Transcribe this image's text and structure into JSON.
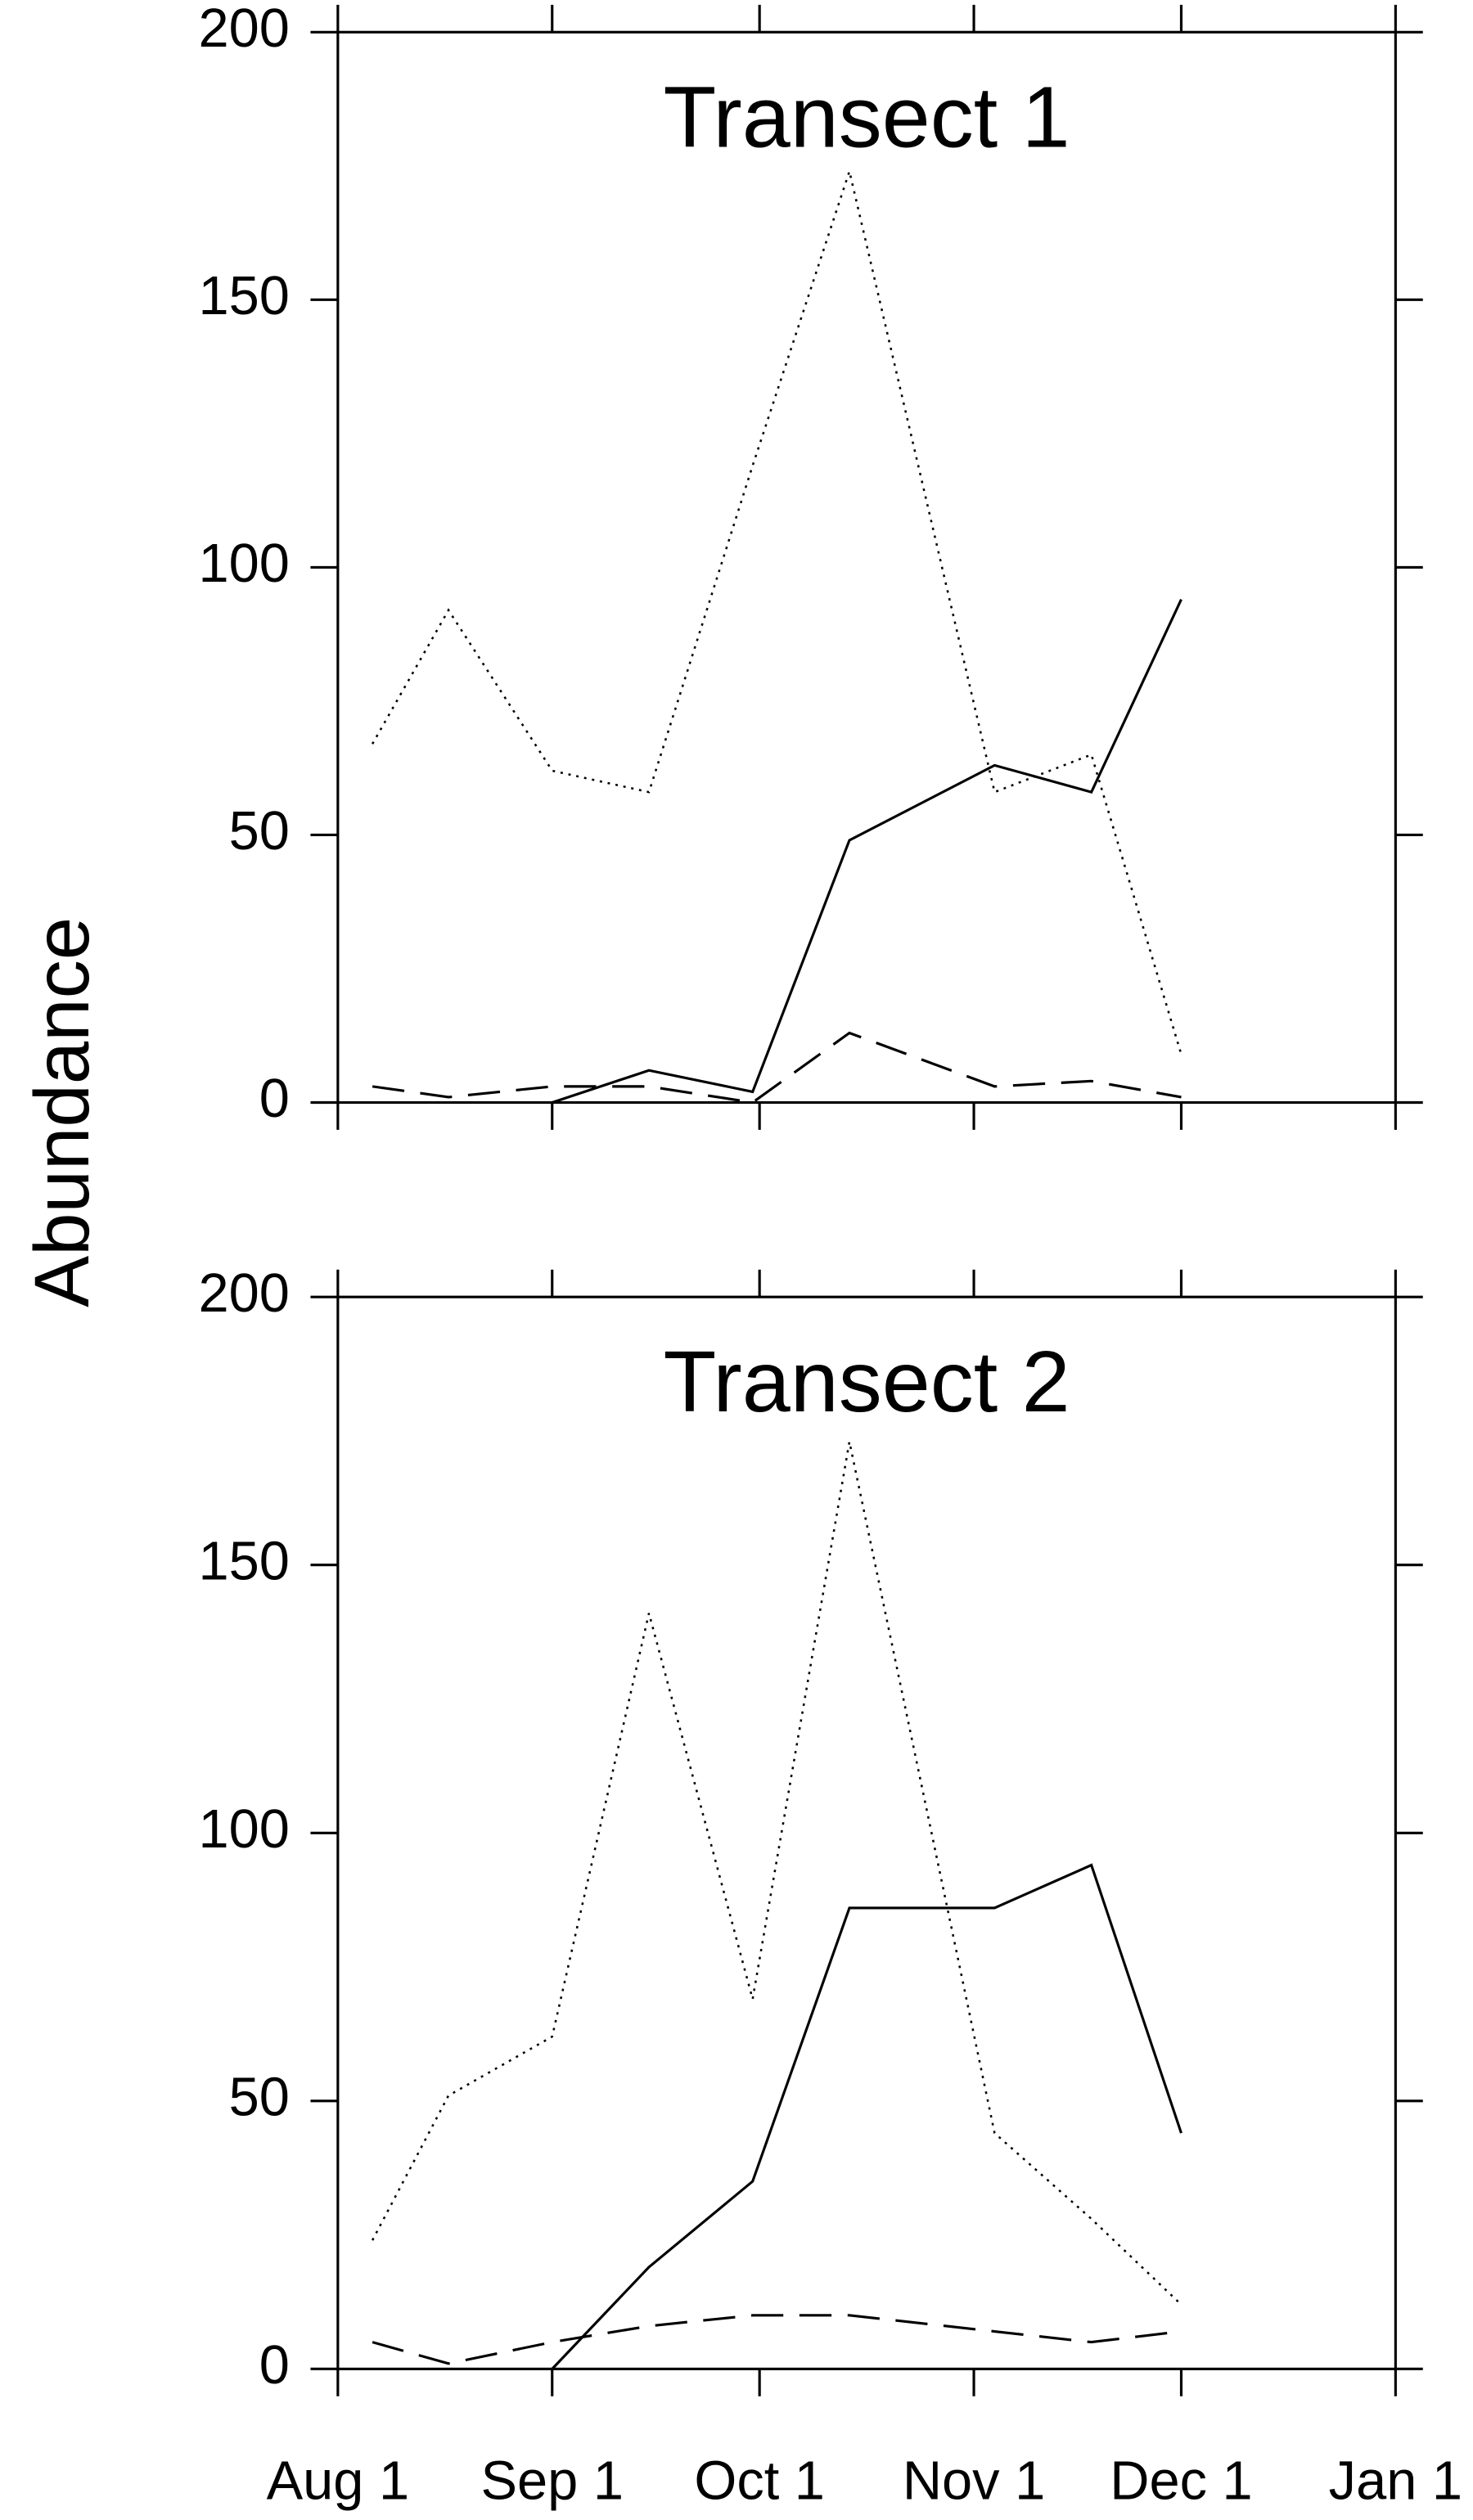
{
  "chart_data": [
    {
      "type": "line",
      "title": "Transect 1",
      "ylabel": "Abundance",
      "x": [
        "Aug 6",
        "Aug 17",
        "Sep 1",
        "Sep 15",
        "Sep 30",
        "Oct 14",
        "Nov 4",
        "Nov 18",
        "Dec 1"
      ],
      "xlim": [
        "Aug 1",
        "Jan 1"
      ],
      "ylim": [
        0,
        200
      ],
      "yticks": [
        0,
        50,
        100,
        150,
        200
      ],
      "series": [
        {
          "color": "#000000",
          "style": "solid",
          "values": [
            null,
            null,
            0,
            6,
            2,
            49,
            63,
            58,
            94
          ]
        },
        {
          "color": "#000000",
          "style": "dotted",
          "values": [
            67,
            92,
            62,
            58,
            119,
            174,
            58,
            65,
            9
          ]
        },
        {
          "color": "#000000",
          "style": "dashed",
          "values": [
            3,
            1,
            3,
            3,
            0,
            13,
            3,
            4,
            1
          ]
        }
      ]
    },
    {
      "type": "line",
      "title": "Transect 2",
      "x": [
        "Aug 6",
        "Aug 17",
        "Sep 1",
        "Sep 15",
        "Sep 30",
        "Oct 14",
        "Nov 4",
        "Nov 18",
        "Dec 1"
      ],
      "xlim": [
        "Aug 1",
        "Jan 1"
      ],
      "xticks": [
        "Aug 1",
        "Sep 1",
        "Oct 1",
        "Nov 1",
        "Dec 1",
        "Jan 1"
      ],
      "ylim": [
        0,
        200
      ],
      "yticks": [
        0,
        50,
        100,
        150,
        200
      ],
      "series": [
        {
          "color": "#000000",
          "style": "solid",
          "values": [
            null,
            null,
            0,
            19,
            35,
            86,
            86,
            94,
            44
          ]
        },
        {
          "color": "#000000",
          "style": "dotted",
          "values": [
            24,
            51,
            62,
            141,
            69,
            173,
            44,
            28,
            12
          ]
        },
        {
          "color": "#000000",
          "style": "dashed",
          "values": [
            5,
            1,
            5,
            8,
            10,
            10,
            7,
            5,
            7
          ]
        }
      ]
    }
  ]
}
